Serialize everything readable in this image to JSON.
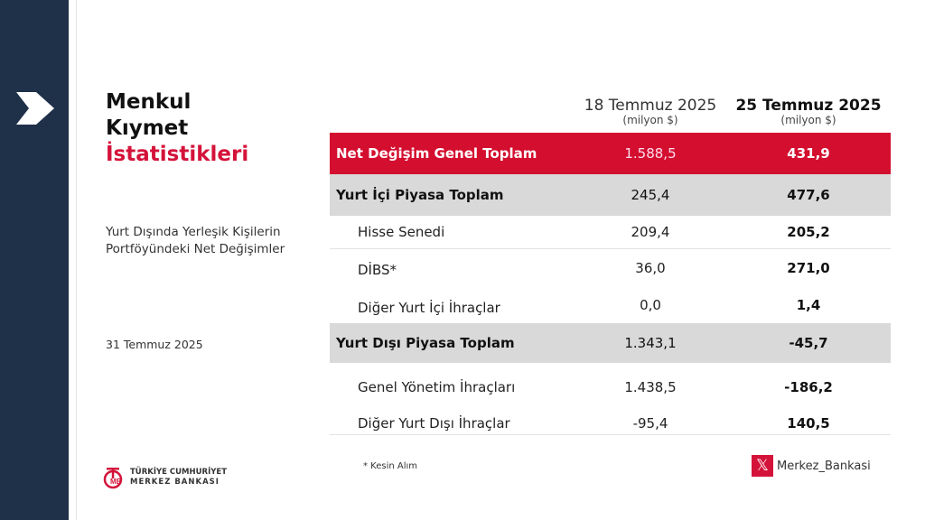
{
  "title": {
    "line1": "Menkul",
    "line2": "Kıymet",
    "line3": "İstatistikleri"
  },
  "subtitle": {
    "line1": "Yurt Dışında Yerleşik Kişilerin",
    "line2": "Portföyündeki Net Değişimler"
  },
  "date": "31 Temmuz 2025",
  "columns": [
    {
      "date": "18 Temmuz 2025",
      "unit": "(milyon $)"
    },
    {
      "date": "25 Temmuz 2025",
      "unit": "(milyon $)"
    }
  ],
  "rows": [
    {
      "label": "Net Değişim Genel Toplam",
      "v1": "1.588,5",
      "v2": "431,9"
    },
    {
      "label": "Yurt İçi Piyasa Toplam",
      "v1": "245,4",
      "v2": "477,6"
    },
    {
      "label": "Hisse Senedi",
      "v1": "209,4",
      "v2": "205,2"
    },
    {
      "label": "DİBS*",
      "v1": "36,0",
      "v2": "271,0"
    },
    {
      "label": "Diğer Yurt İçi İhraçlar",
      "v1": "0,0",
      "v2": "1,4"
    },
    {
      "label": "Yurt Dışı Piyasa Toplam",
      "v1": "1.343,1",
      "v2": "-45,7"
    },
    {
      "label": "Genel Yönetim İhraçları",
      "v1": "1.438,5",
      "v2": "-186,2"
    },
    {
      "label": "Diğer Yurt Dışı İhraçlar",
      "v1": "-95,4",
      "v2": "140,5"
    }
  ],
  "footnote": "* Kesin Alım",
  "logo": {
    "line1": "TÜRKİYE CUMHURİYET",
    "line2": "MERKEZ BANKASI"
  },
  "social": {
    "handle": "Merkez_Bankasi",
    "icon": "x-logo-icon"
  },
  "colors": {
    "sidebar": "#1f3049",
    "accent": "#d40e2f",
    "highlight": "#d9d9d9"
  }
}
